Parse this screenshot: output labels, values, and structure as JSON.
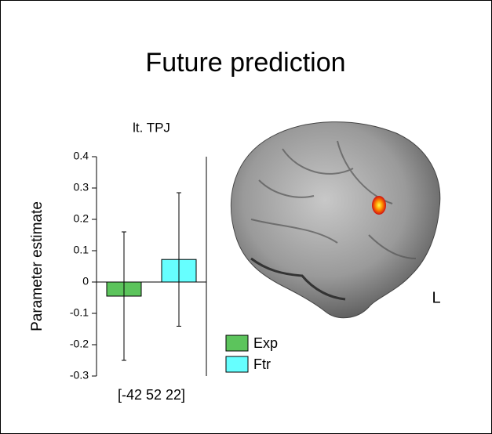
{
  "chart_data": {
    "type": "bar",
    "title": "Future prediction",
    "subtitle": "lt. TPJ",
    "y_label": "Parameter estimate",
    "categories": [
      "[-42 52 22]"
    ],
    "series": [
      {
        "name": "Exp",
        "color": "#5cc45c",
        "values": [
          -0.045
        ],
        "errors": [
          0.205
        ]
      },
      {
        "name": "Ftr",
        "color": "#66ffff",
        "values": [
          0.072
        ],
        "errors": [
          0.213
        ]
      }
    ],
    "ylim": [
      -0.3,
      0.4
    ],
    "yticks": [
      -0.3,
      -0.2,
      -0.1,
      0,
      0.1,
      0.2,
      0.3,
      0.4
    ],
    "grid": false,
    "annotations": [
      "L"
    ]
  }
}
